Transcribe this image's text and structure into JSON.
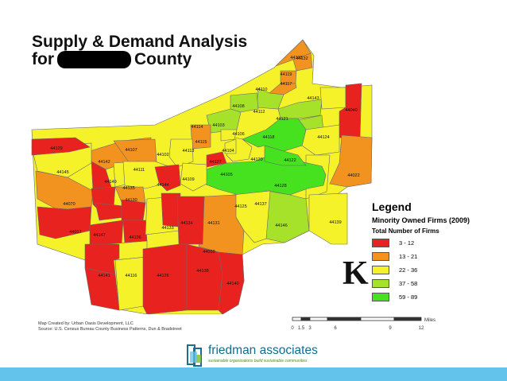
{
  "title": {
    "line1": "Supply & Demand Analysis",
    "line2_prefix": "for",
    "line2_suffix": "County"
  },
  "colors": {
    "red": "#e8221f",
    "orange": "#f2921f",
    "yellow": "#f5f22a",
    "yellowgreen": "#a6e22a",
    "green": "#46e21f",
    "accent_band": "#63c3ea"
  },
  "legend": {
    "heading": "Legend",
    "layer_title": "Minority Owned Firms (2009)",
    "field_title": "Total Number of Firms",
    "classes": [
      {
        "label": "3 - 12",
        "color": "#e8221f"
      },
      {
        "label": "13 - 21",
        "color": "#f2921f"
      },
      {
        "label": "22 - 36",
        "color": "#f5f22a"
      },
      {
        "label": "37 - 58",
        "color": "#a6e22a"
      },
      {
        "label": "59 - 89",
        "color": "#46e21f"
      }
    ]
  },
  "zip_labels": {
    "z1": "44123",
    "z2": "44132",
    "z3": "44119",
    "z4": "44117",
    "z5": "44110",
    "z6": "44143",
    "z7": "44040",
    "z8": "44108",
    "z9": "44112",
    "z10": "44121",
    "z11": "44114",
    "z12": "44103",
    "z13": "44106",
    "z14": "44118",
    "z15": "44124",
    "z16": "44115",
    "z17": "44104",
    "z18": "44120",
    "z19": "44122",
    "z20": "44102",
    "z21": "44113",
    "z22": "44127",
    "z23": "44105",
    "z24": "44128",
    "z25": "44022",
    "z26": "44107",
    "z27": "44111",
    "z28": "44109",
    "z29": "44144",
    "z30": "44135",
    "z31": "44129",
    "z32": "44125",
    "z33": "44137",
    "z34": "44146",
    "z35": "44139",
    "z36": "44145",
    "z37": "44070",
    "z38": "44142",
    "z39": "44130",
    "z40": "44134",
    "z41": "44131",
    "z42": "44147",
    "z43": "44136",
    "z44": "44133",
    "z45": "44141",
    "z46": "44116",
    "z47": "44126",
    "z48": "44138",
    "z49": "44140",
    "z50": "44017",
    "z51": "44149",
    "z52": "44039"
  },
  "north_label": "K",
  "scale": {
    "unit": "Miles",
    "ticks": [
      "0",
      "1.5",
      "3",
      "6",
      "9",
      "12"
    ]
  },
  "credits": {
    "line1": "Map Created by: Urban Oasis Development, LLC",
    "line2": "Source: U.S. Census Bureau County Business Patterns, Dun & Bradstreet"
  },
  "footer": {
    "company": "friedman associates",
    "tagline": "sustainable organizations build sustainable communities"
  }
}
